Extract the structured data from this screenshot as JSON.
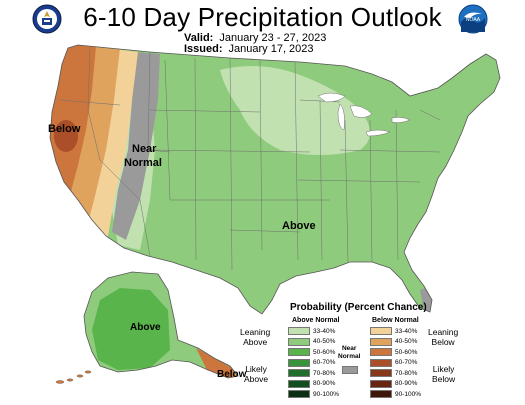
{
  "header": {
    "title": "6-10 Day Precipitation Outlook",
    "valid_label": "Valid:",
    "valid_value": "January 23 - 27, 2023",
    "issued_label": "Issued:",
    "issued_value": "January 17, 2023",
    "noaa_logo_text": "NOAA"
  },
  "map": {
    "labels": {
      "below_west": "Below",
      "near_normal_1": "Near",
      "near_normal_2": "Normal",
      "above_main": "Above",
      "above_alaska": "Above",
      "below_alaska": "Below"
    }
  },
  "legend": {
    "title": "Probability (Percent Chance)",
    "above_header": "Above Normal",
    "below_header": "Below Normal",
    "above_items": [
      {
        "label": "33-40%",
        "color": "#c1e1b1"
      },
      {
        "label": "40-50%",
        "color": "#8fcb7c"
      },
      {
        "label": "50-60%",
        "color": "#5ab44c"
      },
      {
        "label": "60-70%",
        "color": "#37943a"
      },
      {
        "label": "70-80%",
        "color": "#1f6e2b"
      },
      {
        "label": "80-90%",
        "color": "#134e1e"
      },
      {
        "label": "90-100%",
        "color": "#0a2f11"
      }
    ],
    "below_items": [
      {
        "label": "33-40%",
        "color": "#f3d29a"
      },
      {
        "label": "40-50%",
        "color": "#dfa35e"
      },
      {
        "label": "50-60%",
        "color": "#cc763d"
      },
      {
        "label": "60-70%",
        "color": "#aa4f28"
      },
      {
        "label": "70-80%",
        "color": "#86381b"
      },
      {
        "label": "80-90%",
        "color": "#662612"
      },
      {
        "label": "90-100%",
        "color": "#3e160a"
      }
    ],
    "near_normal": {
      "label_1": "Near",
      "label_2": "Normal",
      "color": "#9a9a9a"
    },
    "leaning_above": [
      "Leaning",
      "Above"
    ],
    "likely_above": [
      "Likely",
      "Above"
    ],
    "leaning_below": [
      "Leaning",
      "Below"
    ],
    "likely_below": [
      "Likely",
      "Below"
    ]
  }
}
